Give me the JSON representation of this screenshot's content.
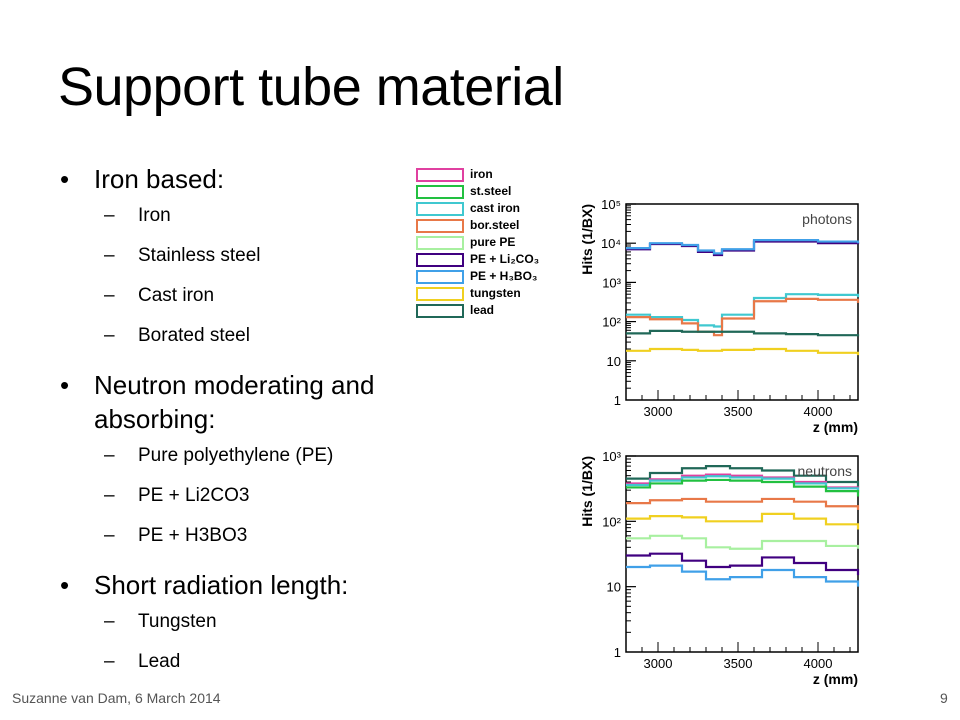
{
  "slide": {
    "title": "Support tube material",
    "footer": "Suzanne van Dam, 6 March 2014",
    "page_number": "9"
  },
  "bullets": [
    {
      "text": "Iron based:",
      "subs": [
        "Iron",
        "Stainless steel",
        "Cast iron",
        "Borated steel"
      ]
    },
    {
      "text": "Neutron moderating and absorbing:",
      "subs": [
        "Pure polyethylene (PE)",
        "PE + Li2CO3",
        "PE + H3BO3"
      ]
    },
    {
      "text": "Short radiation length:",
      "subs": [
        "Tungsten",
        "Lead"
      ]
    }
  ],
  "bullet_glyph": "•",
  "dash_glyph": "–",
  "legend": [
    {
      "label": "iron",
      "color": "#e040a0"
    },
    {
      "label": "st.steel",
      "color": "#22c040"
    },
    {
      "label": "cast iron",
      "color": "#40c8d0"
    },
    {
      "label": "bor.steel",
      "color": "#e87848"
    },
    {
      "label": "pure PE",
      "color": "#a8f0a0"
    },
    {
      "label": "PE + Li₂CO₃",
      "color": "#400080"
    },
    {
      "label": "PE + H₃BO₃",
      "color": "#40a0e8"
    },
    {
      "label": "tungsten",
      "color": "#f0d020"
    },
    {
      "label": "lead",
      "color": "#206858"
    }
  ],
  "chart_data": [
    {
      "type": "line",
      "title": "photons",
      "xlabel": "z (mm)",
      "ylabel": "Hits (1/BX)",
      "ylog": true,
      "xlim": [
        2800,
        4250
      ],
      "ylim": [
        1,
        100000
      ],
      "xticks": [
        3000,
        3500,
        4000
      ],
      "yticks": [
        {
          "v": 10,
          "label": "10"
        },
        {
          "v": 100,
          "label": "10²"
        },
        {
          "v": 1000,
          "label": "10³"
        },
        {
          "v": 10000,
          "label": "10⁴"
        },
        {
          "v": 100000,
          "label": "10⁵"
        }
      ],
      "x": [
        2800,
        2950,
        3150,
        3250,
        3350,
        3400,
        3600,
        3800,
        4000,
        4250
      ],
      "series": [
        {
          "name": "PE + Li₂CO₃",
          "color": "#400080",
          "values": [
            7000,
            9500,
            8500,
            6000,
            5000,
            6500,
            11000,
            11000,
            10000,
            9500
          ]
        },
        {
          "name": "PE + H₃BO₃",
          "color": "#40a0e8",
          "values": [
            7500,
            10000,
            9000,
            6500,
            5500,
            7000,
            12000,
            12000,
            11000,
            10000
          ]
        },
        {
          "name": "cast iron",
          "color": "#40c8d0",
          "values": [
            150,
            130,
            110,
            80,
            75,
            150,
            400,
            500,
            480,
            420
          ]
        },
        {
          "name": "bor.steel",
          "color": "#e87848",
          "values": [
            130,
            115,
            90,
            55,
            45,
            120,
            330,
            380,
            360,
            300
          ]
        },
        {
          "name": "lead",
          "color": "#206858",
          "values": [
            50,
            58,
            55,
            55,
            55,
            55,
            50,
            48,
            45,
            42
          ]
        },
        {
          "name": "tungsten",
          "color": "#f0d020",
          "values": [
            18,
            20,
            19,
            18,
            18,
            19,
            20,
            18,
            16,
            14
          ]
        }
      ]
    },
    {
      "type": "line",
      "title": "neutrons",
      "xlabel": "z (mm)",
      "ylabel": "Hits (1/BX)",
      "ylog": true,
      "xlim": [
        2800,
        4250
      ],
      "ylim": [
        1,
        1000
      ],
      "xticks": [
        3000,
        3500,
        4000
      ],
      "yticks": [
        {
          "v": 10,
          "label": "10"
        },
        {
          "v": 100,
          "label": "10²"
        },
        {
          "v": 1000,
          "label": "10³"
        }
      ],
      "x": [
        2800,
        2950,
        3150,
        3300,
        3450,
        3650,
        3850,
        4050,
        4250
      ],
      "series": [
        {
          "name": "lead",
          "color": "#206858",
          "values": [
            450,
            550,
            650,
            700,
            650,
            600,
            500,
            400,
            330
          ]
        },
        {
          "name": "iron",
          "color": "#e040a0",
          "values": [
            380,
            440,
            500,
            520,
            500,
            470,
            400,
            330,
            280
          ]
        },
        {
          "name": "cast iron",
          "color": "#40c8d0",
          "values": [
            360,
            420,
            470,
            490,
            470,
            450,
            380,
            320,
            270
          ]
        },
        {
          "name": "st.steel",
          "color": "#22c040",
          "values": [
            330,
            380,
            420,
            430,
            420,
            400,
            340,
            290,
            240
          ]
        },
        {
          "name": "bor.steel",
          "color": "#e87848",
          "values": [
            190,
            210,
            220,
            200,
            200,
            220,
            200,
            170,
            150
          ]
        },
        {
          "name": "tungsten",
          "color": "#f0d020",
          "values": [
            110,
            120,
            115,
            100,
            100,
            130,
            110,
            90,
            75
          ]
        },
        {
          "name": "pure PE",
          "color": "#a8f0a0",
          "values": [
            55,
            60,
            55,
            40,
            38,
            50,
            50,
            42,
            38
          ]
        },
        {
          "name": "PE + Li₂CO₃",
          "color": "#400080",
          "values": [
            30,
            32,
            25,
            20,
            21,
            28,
            23,
            18,
            15
          ]
        },
        {
          "name": "PE + H₃BO₃",
          "color": "#40a0e8",
          "values": [
            20,
            21,
            17,
            13,
            14,
            18,
            14,
            12,
            10
          ]
        }
      ]
    }
  ]
}
